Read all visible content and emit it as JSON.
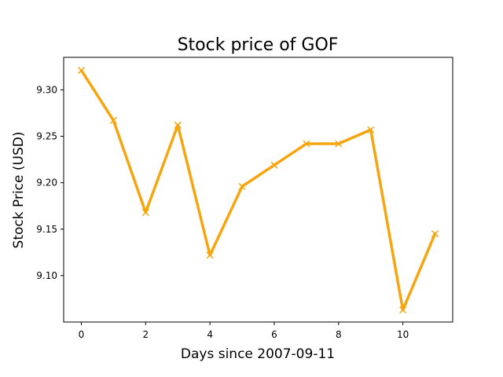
{
  "chart_data": {
    "type": "line",
    "title": "Stock price of GOF",
    "xlabel": "Days since 2007-09-11",
    "ylabel": "Stock Price (USD)",
    "x": [
      0,
      1,
      2,
      3,
      4,
      5,
      6,
      7,
      8,
      9,
      10,
      11
    ],
    "series": [
      {
        "values": [
          9.321,
          9.267,
          9.168,
          9.262,
          9.122,
          9.196,
          9.219,
          9.242,
          9.242,
          9.257,
          9.063,
          9.145
        ],
        "color": "#f5a50f",
        "marker": "x"
      }
    ],
    "xlim": [
      -0.55,
      11.55
    ],
    "ylim": [
      9.05,
      9.335
    ],
    "xticks": [
      0,
      2,
      4,
      6,
      8,
      10
    ],
    "yticks": [
      9.1,
      9.15,
      9.2,
      9.25,
      9.3
    ],
    "xtick_labels": [
      "0",
      "2",
      "4",
      "6",
      "8",
      "10"
    ],
    "ytick_labels": [
      "9.10",
      "9.15",
      "9.20",
      "9.25",
      "9.30"
    ],
    "grid": false,
    "legend": "none"
  }
}
